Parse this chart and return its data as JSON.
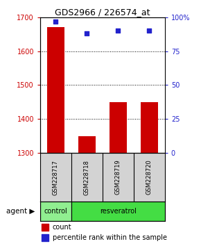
{
  "title": "GDS2966 / 226574_at",
  "samples": [
    "GSM228717",
    "GSM228718",
    "GSM228719",
    "GSM228720"
  ],
  "counts": [
    1670,
    1350,
    1450,
    1450
  ],
  "percentile_ranks": [
    97,
    88,
    90,
    90
  ],
  "ymin": 1300,
  "ymax": 1700,
  "y_ticks": [
    1300,
    1400,
    1500,
    1600,
    1700
  ],
  "right_yticks": [
    0,
    25,
    50,
    75,
    100
  ],
  "right_ytick_labels": [
    "0",
    "25",
    "50",
    "75",
    "100%"
  ],
  "bar_color": "#cc0000",
  "dot_color": "#2222cc",
  "control_color": "#90ee90",
  "resveratrol_color": "#44dd44",
  "sample_bg_color": "#d3d3d3",
  "agent_label": "agent",
  "legend_count_label": "count",
  "legend_pct_label": "percentile rank within the sample",
  "tick_color_left": "#cc0000",
  "tick_color_right": "#2222cc",
  "bar_width": 0.55
}
